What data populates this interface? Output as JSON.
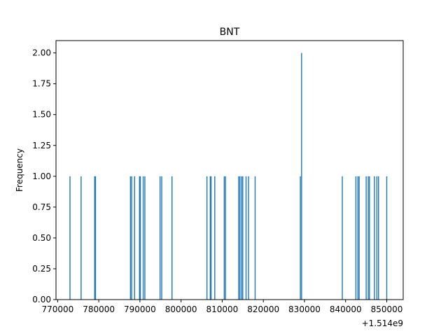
{
  "chart_data": {
    "type": "histogram",
    "title": "BNT",
    "xlabel": "",
    "ylabel": "Frequency",
    "x_offset_label": "+1.514e9",
    "xlim": [
      769600,
      854000
    ],
    "ylim": [
      0,
      2.1
    ],
    "bar_color": "#1f77b4",
    "x_ticks": [
      770000,
      780000,
      790000,
      800000,
      810000,
      820000,
      830000,
      840000,
      850000
    ],
    "y_ticks": [
      0.0,
      0.25,
      0.5,
      0.75,
      1.0,
      1.25,
      1.5,
      1.75,
      2.0
    ],
    "bins": [
      {
        "x": 773000,
        "count": 1
      },
      {
        "x": 775700,
        "count": 1
      },
      {
        "x": 779000,
        "count": 1
      },
      {
        "x": 779200,
        "count": 1
      },
      {
        "x": 787700,
        "count": 1
      },
      {
        "x": 788000,
        "count": 1
      },
      {
        "x": 788700,
        "count": 1
      },
      {
        "x": 789900,
        "count": 1
      },
      {
        "x": 790100,
        "count": 1
      },
      {
        "x": 790800,
        "count": 1
      },
      {
        "x": 791200,
        "count": 1
      },
      {
        "x": 794900,
        "count": 1
      },
      {
        "x": 795300,
        "count": 1
      },
      {
        "x": 797800,
        "count": 1
      },
      {
        "x": 806300,
        "count": 1
      },
      {
        "x": 807100,
        "count": 1
      },
      {
        "x": 807300,
        "count": 1
      },
      {
        "x": 808200,
        "count": 1
      },
      {
        "x": 810500,
        "count": 1
      },
      {
        "x": 810800,
        "count": 1
      },
      {
        "x": 814000,
        "count": 1
      },
      {
        "x": 814300,
        "count": 1
      },
      {
        "x": 814700,
        "count": 1
      },
      {
        "x": 815000,
        "count": 1
      },
      {
        "x": 815800,
        "count": 1
      },
      {
        "x": 816400,
        "count": 1
      },
      {
        "x": 818000,
        "count": 1
      },
      {
        "x": 829000,
        "count": 1
      },
      {
        "x": 829300,
        "count": 2
      },
      {
        "x": 839200,
        "count": 1
      },
      {
        "x": 842500,
        "count": 1
      },
      {
        "x": 843000,
        "count": 1
      },
      {
        "x": 843300,
        "count": 1
      },
      {
        "x": 845000,
        "count": 1
      },
      {
        "x": 845500,
        "count": 1
      },
      {
        "x": 845800,
        "count": 1
      },
      {
        "x": 847000,
        "count": 1
      },
      {
        "x": 847600,
        "count": 1
      },
      {
        "x": 848000,
        "count": 1
      },
      {
        "x": 850000,
        "count": 1
      }
    ]
  }
}
